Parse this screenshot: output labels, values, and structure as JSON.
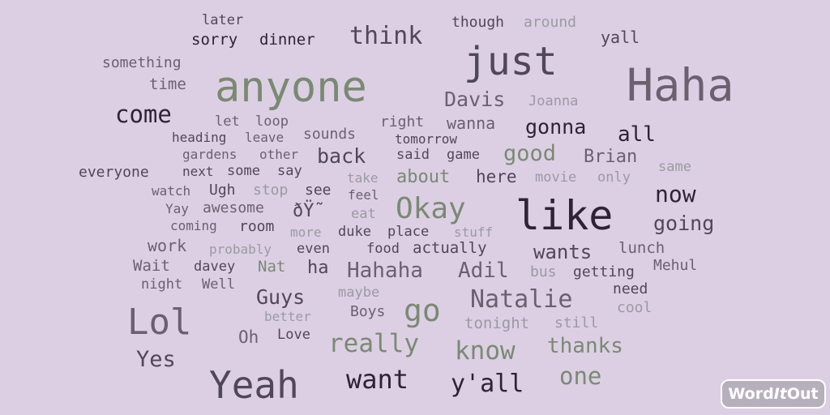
{
  "cloud": {
    "words": {
      "later": "later",
      "though": "though",
      "around": "around",
      "sorry": "sorry",
      "dinner": "dinner",
      "think": "think",
      "yall": "yall",
      "something": "something",
      "just": "just",
      "time": "time",
      "anyone": "anyone",
      "haha": "Haha",
      "davis": "Davis",
      "joanna": "Joanna",
      "come": "come",
      "let": "let",
      "loop": "loop",
      "right": "right",
      "wanna": "wanna",
      "gonna": "gonna",
      "heading": "heading",
      "leave": "leave",
      "sounds": "sounds",
      "tomorrow": "tomorrow",
      "all": "all",
      "gardens": "gardens",
      "other": "other",
      "back": "back",
      "said": "said",
      "game": "game",
      "good": "good",
      "brian": "Brian",
      "everyone": "everyone",
      "next": "next",
      "some": "some",
      "say": "say",
      "take": "take",
      "about": "about",
      "here": "here",
      "movie": "movie",
      "only": "only",
      "same": "same",
      "watch": "watch",
      "ugh": "Ugh",
      "stop": "stop",
      "see": "see",
      "feel": "feel",
      "okay": "Okay",
      "like": "like",
      "now": "now",
      "yay": "Yay",
      "awesome": "awesome",
      "garbled": "ðŸ˜",
      "eat": "eat",
      "coming": "coming",
      "room": "room",
      "more": "more",
      "duke": "duke",
      "place": "place",
      "stuff": "stuff",
      "going": "going",
      "work": "work",
      "probably": "probably",
      "even": "even",
      "food": "food",
      "actually": "actually",
      "wants": "wants",
      "lunch": "lunch",
      "wait": "Wait",
      "davey": "davey",
      "nat": "Nat",
      "ha": "ha",
      "hahaha": "Hahaha",
      "adil": "Adil",
      "bus": "bus",
      "getting": "getting",
      "mehul": "Mehul",
      "night": "night",
      "well": "Well",
      "guys": "Guys",
      "maybe": "maybe",
      "natalie": "Natalie",
      "need": "need",
      "lol": "Lol",
      "better": "better",
      "go": "go",
      "boys": "Boys",
      "tonight": "tonight",
      "still": "still",
      "cool": "cool",
      "oh": "Oh",
      "love": "Love",
      "really": "really",
      "know": "know",
      "thanks": "thanks",
      "yes": "Yes",
      "yeah": "Yeah",
      "want": "want",
      "yall2": "y'all",
      "one": "one"
    },
    "logo": {
      "word": "Word",
      "it": "It",
      "out": "Out"
    }
  },
  "colors": {
    "background": "#dccfe4",
    "dark_purple": "#2f2235",
    "dark_gray": "#504758",
    "mid_gray": "#6b6070",
    "sage_green": "#7a8a72",
    "light_gray": "#9a9aa2"
  }
}
